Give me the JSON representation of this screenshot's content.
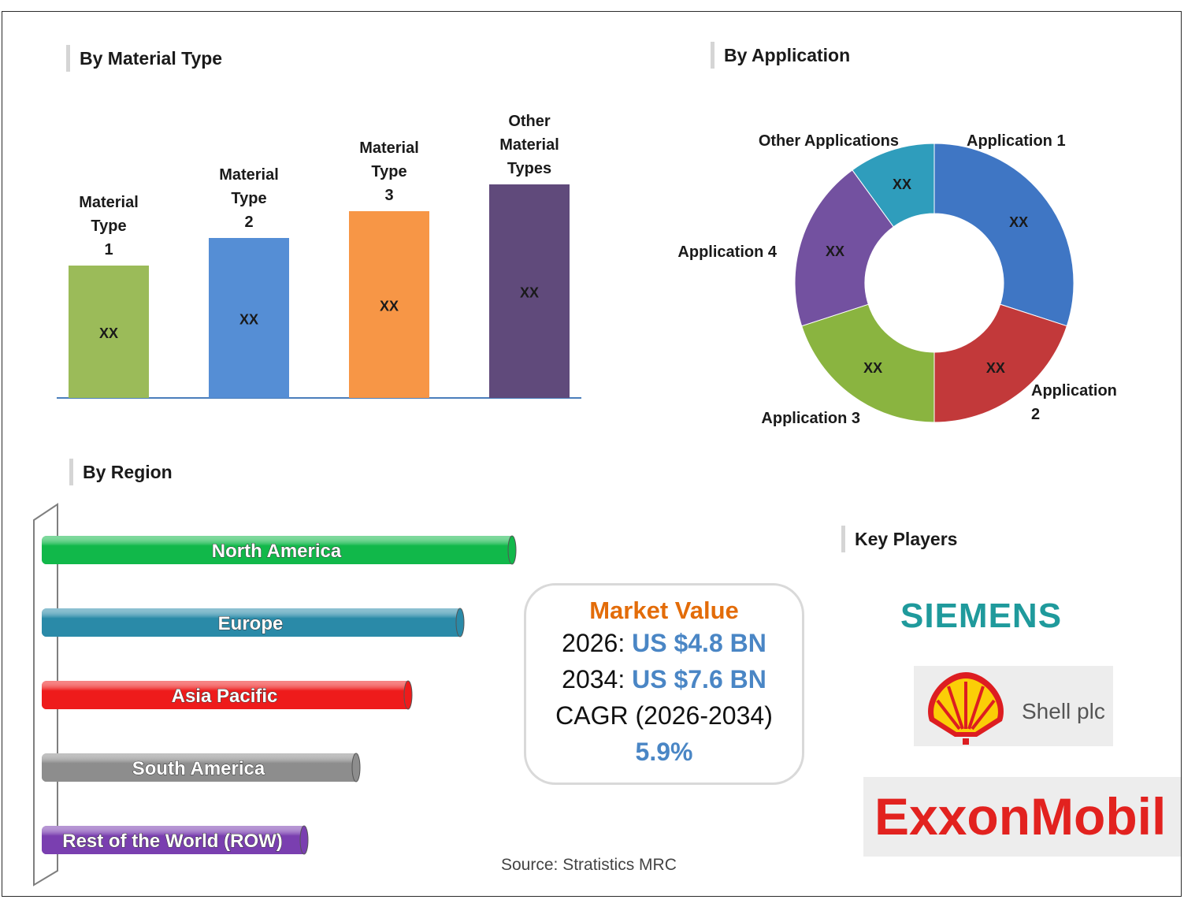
{
  "sections": {
    "material": "By Material Type",
    "application": "By Application",
    "region": "By Region",
    "players": "Key Players"
  },
  "chart_data": [
    {
      "type": "bar",
      "categories": [
        "Material Type 1",
        "Material Type 2",
        "Material Type 3",
        "Other Material Types"
      ],
      "values": [
        168,
        203,
        237,
        271
      ],
      "value_labels": [
        "XX",
        "XX",
        "XX",
        "XX"
      ],
      "colors": [
        "#9bbb59",
        "#558ed5",
        "#f79646",
        "#604a7b"
      ]
    },
    {
      "type": "pie",
      "donut": true,
      "categories": [
        "Application 1",
        "Application 2",
        "Application 3",
        "Application 4",
        "Other Applications"
      ],
      "values": [
        30,
        20,
        20,
        20,
        10
      ],
      "value_labels": [
        "XX",
        "XX",
        "XX",
        "XX",
        "XX"
      ],
      "colors": [
        "#3f76c4",
        "#c2393a",
        "#8ab440",
        "#7351a0",
        "#2f9dbc"
      ]
    },
    {
      "type": "bar",
      "orientation": "horizontal",
      "categories": [
        "North America",
        "Europe",
        "Asia Pacific",
        "South America",
        "Rest of the World (ROW)"
      ],
      "values": [
        100,
        89,
        78,
        67,
        56
      ],
      "colors": [
        "#11b84a",
        "#2a8aa8",
        "#ee1b1b",
        "#8d8d8d",
        "#7a3fb0"
      ]
    }
  ],
  "market": {
    "title": "Market Value",
    "line1_prefix": "2026: ",
    "line1_value": "US $4.8 BN",
    "line2_prefix": "2034: ",
    "line2_value": "US $7.6 BN",
    "cagr_label": "CAGR (2026-2034)",
    "cagr_value": "5.9%"
  },
  "players": {
    "siemens": "SIEMENS",
    "shell": "Shell plc",
    "exxon": "ExxonMobil"
  },
  "source": "Source: Stratistics MRC"
}
